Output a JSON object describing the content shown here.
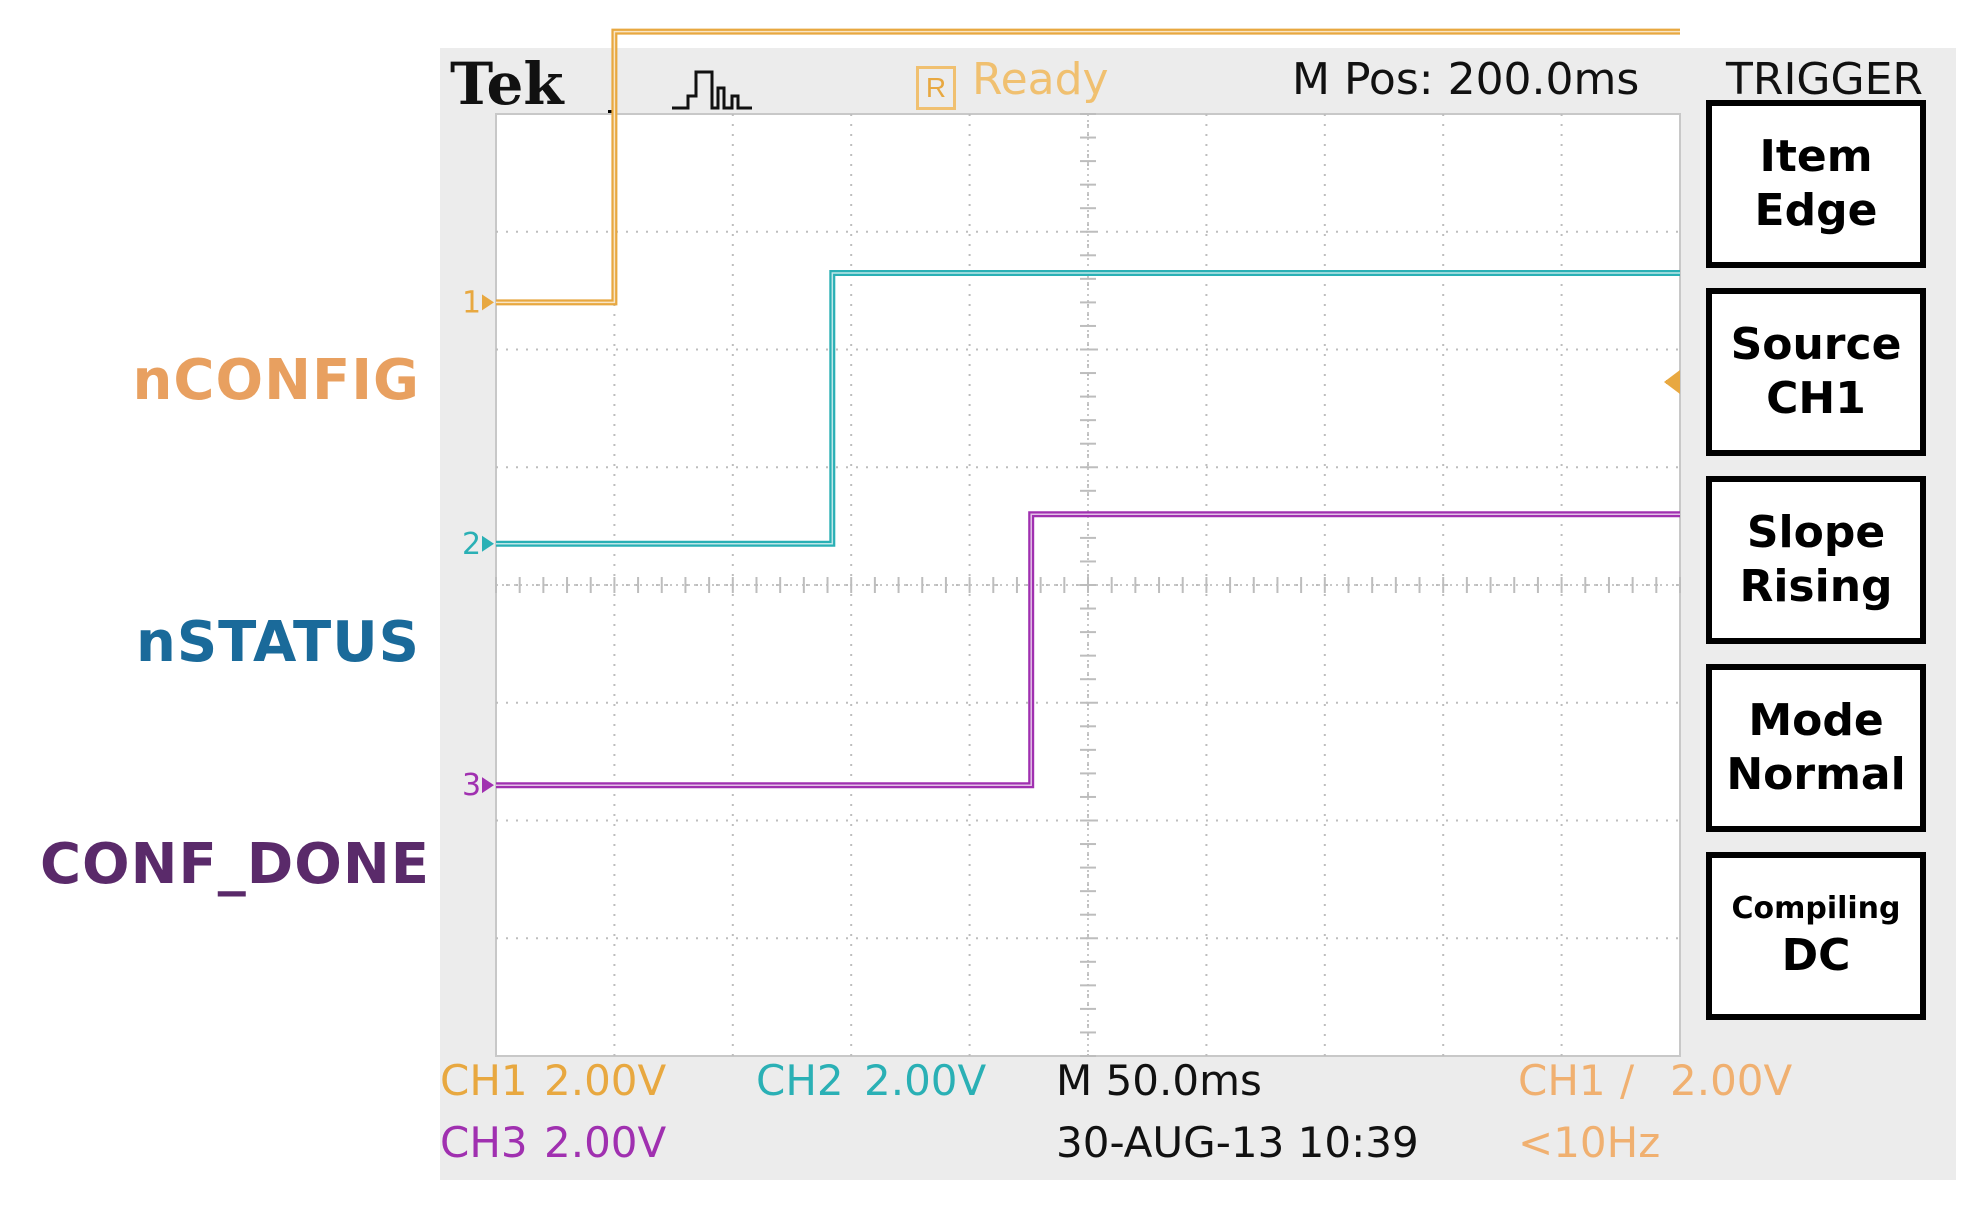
{
  "chart_data": {
    "type": "line",
    "title": "",
    "xlabel": "",
    "ylabel": "",
    "x_unit": "ms",
    "xlim": [
      0,
      500
    ],
    "grid": true,
    "series": [
      {
        "name": "nCONFIG",
        "marker": "1",
        "color": "#e8a840",
        "points": [
          [
            0,
            0
          ],
          [
            50,
            0
          ],
          [
            50,
            4.6
          ],
          [
            500,
            4.6
          ]
        ]
      },
      {
        "name": "nSTATUS",
        "marker": "2",
        "color": "#2ab0b5",
        "points": [
          [
            0,
            0
          ],
          [
            142,
            0
          ],
          [
            142,
            4.6
          ],
          [
            500,
            4.6
          ]
        ]
      },
      {
        "name": "CONF_DONE",
        "marker": "3",
        "color": "#a030b0",
        "points": [
          [
            0,
            0
          ],
          [
            226,
            0
          ],
          [
            226,
            4.6
          ],
          [
            500,
            4.6
          ]
        ]
      }
    ]
  },
  "header": {
    "brand": "Tek",
    "status_icon": "R",
    "status": "Ready",
    "position": "M Pos: 200.0ms",
    "menu_title": "TRIGGER"
  },
  "menu": [
    {
      "lines": [
        "Item",
        "Edge"
      ],
      "small_first": false
    },
    {
      "lines": [
        "Source",
        "CH1"
      ],
      "small_first": false
    },
    {
      "lines": [
        "Slope",
        "Rising"
      ],
      "small_first": false
    },
    {
      "lines": [
        "Mode",
        "Normal"
      ],
      "small_first": false
    },
    {
      "lines": [
        "Compiling",
        "DC"
      ],
      "small_first": true
    }
  ],
  "footer": {
    "ch1": "CH1",
    "ch1_scale": "2.00V",
    "ch2": "CH2",
    "ch2_scale": "2.00V",
    "ch3": "CH3",
    "ch3_scale": "2.00V",
    "timebase": "M 50.0ms",
    "datetime": "30-AUG-13 10:39",
    "trig_source": "CH1",
    "trig_slope_symbol": "/",
    "trig_level": "2.00V",
    "trig_freq": "<10Hz"
  },
  "colors": {
    "ch1": "#e8a840",
    "ch2": "#2ab0b5",
    "ch3": "#a030b0",
    "label1": "#e8a060",
    "label2": "#1a6a9a",
    "label3": "#5a2a6a"
  }
}
